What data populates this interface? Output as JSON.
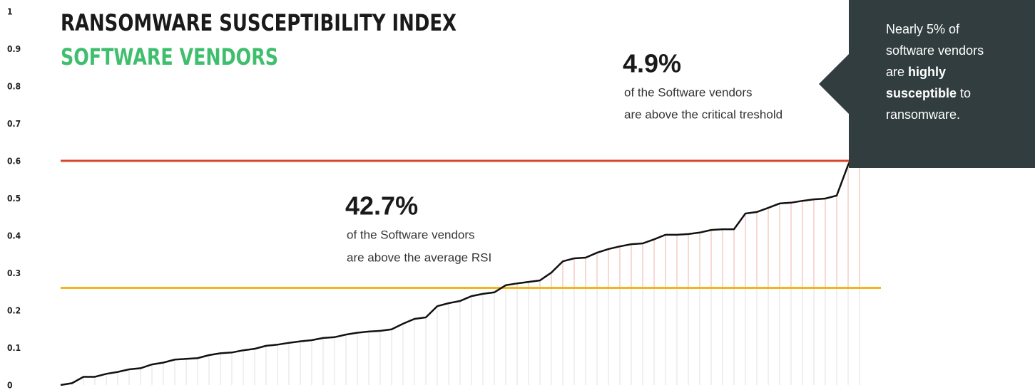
{
  "chart_data": {
    "type": "line",
    "title": "RANSOMWARE SUSCEPTIBILITY INDEX",
    "subtitle": "SOFTWARE VENDORS",
    "color": "#111111",
    "values": [
      0,
      0.005,
      0.022,
      0.022,
      0.03,
      0.035,
      0.042,
      0.045,
      0.055,
      0.06,
      0.068,
      0.07,
      0.072,
      0.08,
      0.085,
      0.087,
      0.093,
      0.097,
      0.105,
      0.108,
      0.113,
      0.117,
      0.12,
      0.126,
      0.128,
      0.135,
      0.14,
      0.143,
      0.145,
      0.149,
      0.164,
      0.177,
      0.181,
      0.211,
      0.219,
      0.225,
      0.238,
      0.244,
      0.248,
      0.267,
      0.272,
      0.276,
      0.28,
      0.301,
      0.331,
      0.339,
      0.341,
      0.354,
      0.364,
      0.371,
      0.377,
      0.379,
      0.39,
      0.402,
      0.402,
      0.404,
      0.408,
      0.415,
      0.417,
      0.417,
      0.459,
      0.463,
      0.474,
      0.486,
      0.488,
      0.493,
      0.497,
      0.499,
      0.507,
      0.589,
      0.65
    ],
    "ylim": [
      0,
      1
    ],
    "yticks": [
      0,
      0.1,
      0.2,
      0.3,
      0.4,
      0.5,
      0.6,
      0.7,
      0.8,
      0.9,
      1
    ],
    "reference_lines": [
      {
        "value": 0.6,
        "color": "#d9452b"
      },
      {
        "value": 0.26,
        "color": "#f2b51c"
      }
    ],
    "annotations": [
      {
        "value": "42.7%",
        "lines": [
          "of the Software vendors",
          "are above the average RSI"
        ]
      },
      {
        "value": "4.9%",
        "lines": [
          "of the Software vendors",
          "are above the critical treshold"
        ]
      }
    ],
    "callout": [
      [
        "Nearly 5% of"
      ],
      [
        "software vendors"
      ],
      [
        "are ",
        "highly"
      ],
      [
        "susceptible",
        " to"
      ],
      [
        "ransomware."
      ]
    ]
  }
}
